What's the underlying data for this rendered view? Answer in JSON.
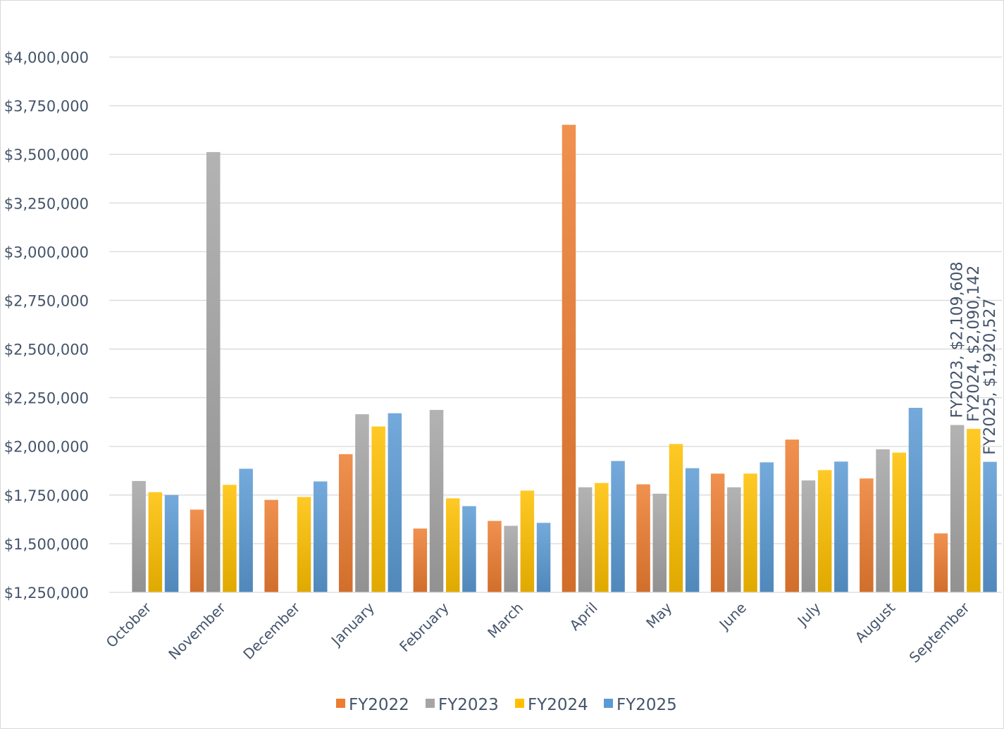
{
  "chart_data": {
    "type": "bar",
    "title": "",
    "xlabel": "",
    "ylabel": "",
    "ylim": [
      1250000,
      4000000
    ],
    "yticks": [
      1250000,
      1500000,
      1750000,
      2000000,
      2250000,
      2500000,
      2750000,
      3000000,
      3250000,
      3500000,
      3750000,
      4000000
    ],
    "ytick_labels": [
      "$1,250,000",
      "$1,500,000",
      "$1,750,000",
      "$2,000,000",
      "$2,250,000",
      "$2,500,000",
      "$2,750,000",
      "$3,000,000",
      "$3,250,000",
      "$3,500,000",
      "$3,750,000",
      "$4,000,000"
    ],
    "categories": [
      "October",
      "November",
      "December",
      "January",
      "February",
      "March",
      "April",
      "May",
      "June",
      "July",
      "August",
      "September"
    ],
    "grid": true,
    "legend_position": "bottom",
    "series": [
      {
        "name": "FY2022",
        "color": "#ed7d31",
        "values": [
          null,
          1675000,
          1725000,
          1960000,
          1578000,
          1617000,
          3652000,
          1805000,
          1860000,
          2035000,
          1835000,
          1553000
        ]
      },
      {
        "name": "FY2023",
        "color": "#a5a5a5",
        "values": [
          1822000,
          3512000,
          null,
          2165000,
          2187000,
          1592000,
          1790000,
          1757000,
          1790000,
          1825000,
          1985000,
          2109608
        ]
      },
      {
        "name": "FY2024",
        "color": "#ffc000",
        "values": [
          1765000,
          1802000,
          1740000,
          2102000,
          1733000,
          1773000,
          1812000,
          2012000,
          1860000,
          1878000,
          1968000,
          2090142
        ]
      },
      {
        "name": "FY2025",
        "color": "#5b9bd5",
        "values": [
          1750000,
          1885000,
          1820000,
          2170000,
          1693000,
          1607000,
          1925000,
          1888000,
          1918000,
          1922000,
          2198000,
          1920527
        ]
      }
    ],
    "data_labels": [
      {
        "series": "FY2023",
        "category": "September",
        "text": "FY2023, $2,109,608"
      },
      {
        "series": "FY2024",
        "category": "September",
        "text": "FY2024, $2,090,142"
      },
      {
        "series": "FY2025",
        "category": "September",
        "text": "FY2025, $1,920,527"
      }
    ]
  }
}
